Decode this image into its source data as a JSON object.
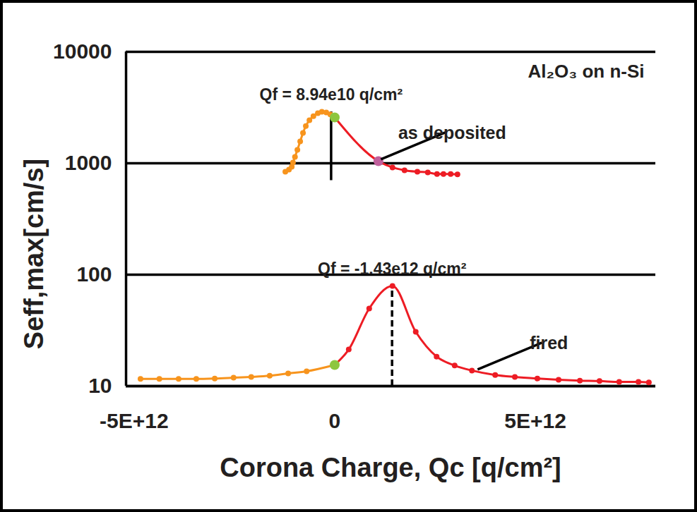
{
  "chart_data": {
    "type": "line",
    "title": "Al₂O₃ on n-Si",
    "x_label": "Corona Charge, Qc [q/cm²]",
    "y_label": "Seff,max[cm/s]",
    "log": "y",
    "grid": true,
    "marker": "circle",
    "xlim": [
      -5200000000000.0,
      8000000000000.0
    ],
    "xticks": [
      {
        "value": -5000000000000.0,
        "label": "-5E+12"
      },
      0,
      {
        "value": 5000000000000.0,
        "label": "5E+12"
      }
    ],
    "ylim": [
      10,
      10000
    ],
    "yticks": [
      10,
      100,
      1000,
      10000
    ],
    "series": [
      {
        "color": "#f7941d",
        "x": [
          -1230000000000.0,
          -1140000000000.0,
          -1070000000000.0,
          -1040000000000.0,
          -990000000000.0,
          -930000000000.0,
          -860000000000.0,
          -790000000000.0,
          -720000000000.0,
          -630000000000.0,
          -530000000000.0,
          -420000000000.0,
          -320000000000.0,
          -210000000000.0,
          -110000000000.0,
          0
        ],
        "values": [
          840,
          877,
          929,
          1014,
          1140,
          1320,
          1570,
          1870,
          2160,
          2430,
          2650,
          2810,
          2900,
          2860,
          2740,
          2580
        ]
      },
      {
        "color": "#ed1c24",
        "x": [
          0,
          1090000000000.0,
          1440000000000.0,
          1740000000000.0,
          2060000000000.0,
          2320000000000.0,
          2550000000000.0,
          2710000000000.0,
          2890000000000.0,
          3060000000000.0
        ],
        "values": [
          2580,
          1045,
          917,
          865,
          840,
          828,
          801,
          801,
          801,
          795
        ]
      },
      {
        "color": "#f7941d",
        "x": [
          -4840000000000.0,
          -4370000000000.0,
          -3890000000000.0,
          -3450000000000.0,
          -2990000000000.0,
          -2520000000000.0,
          -2080000000000.0,
          -1620000000000.0,
          -1160000000000.0,
          -700000000000.0,
          0
        ],
        "values": [
          11.6,
          11.6,
          11.6,
          11.6,
          11.7,
          11.9,
          12.1,
          12.4,
          13.0,
          13.6,
          15.5
        ]
      },
      {
        "color": "#ed1c24",
        "x": [
          0,
          350000000000.0,
          860000000000.0,
          1440000000000.0,
          2020000000000.0,
          2540000000000.0,
          2990000000000.0,
          3420000000000.0,
          4000000000000.0,
          4490000000000.0,
          5050000000000.0,
          5580000000000.0,
          6110000000000.0,
          6600000000000.0,
          7090000000000.0,
          7570000000000.0,
          7830000000000.0
        ],
        "values": [
          15.5,
          21.3,
          49.7,
          79.3,
          30.7,
          18.4,
          15.3,
          13.8,
          12.6,
          12.1,
          11.7,
          11.4,
          11.2,
          11.1,
          10.9,
          10.9,
          10.8
        ]
      }
    ],
    "highlights": [
      {
        "x": 0,
        "y": 2580,
        "color": "#8dc63f"
      },
      {
        "x": 0,
        "y": 15.5,
        "color": "#8dc63f"
      },
      {
        "x": 1090000000000.0,
        "y": 1045,
        "color": "#c0609c"
      }
    ],
    "peak_lines": [
      {
        "x": -89400000000.0,
        "y1": 700,
        "y2": 2900,
        "line_style": "solid",
        "label": "Qf = 8.94e10 q/cm²"
      },
      {
        "x": 1430000000000.0,
        "y1": 10,
        "y2": 79.3,
        "line_style": "dashed",
        "label": "Qf = -1.43e12 q/cm²"
      }
    ],
    "curve_labels": [
      {
        "text": "as deposited",
        "x": 1090000000000.0,
        "y": 1045
      },
      {
        "text": "fired",
        "x": 3500000000000.0,
        "y": 13.6
      }
    ]
  }
}
